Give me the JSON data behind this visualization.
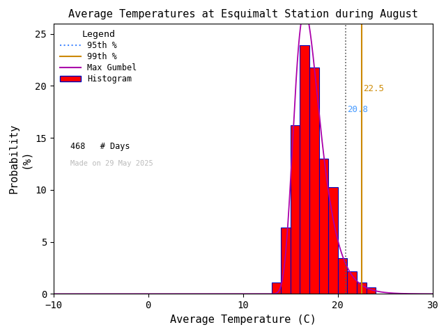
{
  "title": "Average Temperatures at Esquimalt Station during August",
  "xlabel": "Average Temperature (C)",
  "ylabel_top": "Probability",
  "ylabel_bot": "(%)",
  "xlim": [
    -10,
    30
  ],
  "ylim": [
    0,
    26
  ],
  "xticks": [
    -10,
    0,
    10,
    20,
    30
  ],
  "yticks": [
    0,
    5,
    10,
    15,
    20,
    25
  ],
  "bar_lefts": [
    13,
    14,
    15,
    16,
    17,
    18,
    19,
    20,
    21,
    22,
    23
  ],
  "bar_heights": [
    1.07,
    6.41,
    16.24,
    23.93,
    21.79,
    13.03,
    10.26,
    3.42,
    2.14,
    1.07,
    0.64
  ],
  "bar_color": "#ff0000",
  "bar_edgecolor": "#0000bb",
  "gumbel_mu": 16.5,
  "gumbel_beta": 1.35,
  "gumbel_scale": 100,
  "pct95_x": 20.8,
  "pct99_x": 22.5,
  "n_days": 468,
  "legend_title": "Legend",
  "watermark": "Made on 29 May 2025",
  "pct95_color": "#4488ff",
  "pct99_color": "#cc8800",
  "gumbel_color": "#aa00aa",
  "background_color": "#ffffff",
  "title_fontsize": 11,
  "axis_fontsize": 11,
  "tick_fontsize": 10,
  "pct95_label": "20.8",
  "pct99_label": "22.5",
  "pct95_label_color": "#4499ff",
  "pct99_label_color": "#cc8800"
}
